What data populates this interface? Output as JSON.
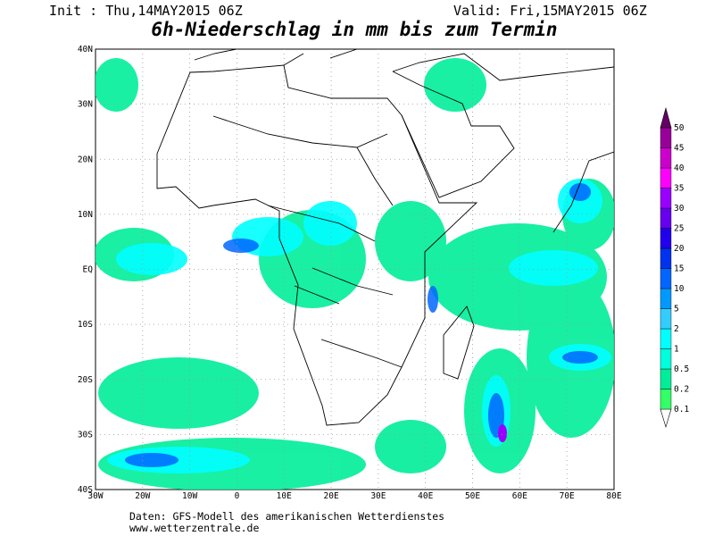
{
  "header": {
    "init": "Init : Thu,14MAY2015 06Z",
    "valid": "Valid: Fri,15MAY2015 06Z",
    "title": "6h-Niederschlag in mm bis zum Termin"
  },
  "map": {
    "lon_labels": [
      "30W",
      "20W",
      "10W",
      "0",
      "10E",
      "20E",
      "30E",
      "40E",
      "50E",
      "60E",
      "70E",
      "80E"
    ],
    "lat_labels": [
      "40N",
      "30N",
      "20N",
      "10N",
      "EQ",
      "10S",
      "20S",
      "30S",
      "40S"
    ]
  },
  "colorbar": {
    "levels": [
      0.1,
      0.2,
      0.5,
      1,
      2,
      5,
      10,
      15,
      20,
      25,
      30,
      35,
      40,
      45,
      50
    ],
    "colors": [
      "#ffffff",
      "#33ff66",
      "#00ee99",
      "#00ffdd",
      "#00ffff",
      "#33ccff",
      "#0099ff",
      "#0066ff",
      "#0033ee",
      "#2200ee",
      "#6600ee",
      "#9900ff",
      "#ff00ff",
      "#cc00cc",
      "#990099",
      "#660066"
    ]
  },
  "footer": {
    "source": "Daten: GFS-Modell des amerikanischen Wetterdienstes",
    "url": "www.wetterzentrale.de"
  }
}
